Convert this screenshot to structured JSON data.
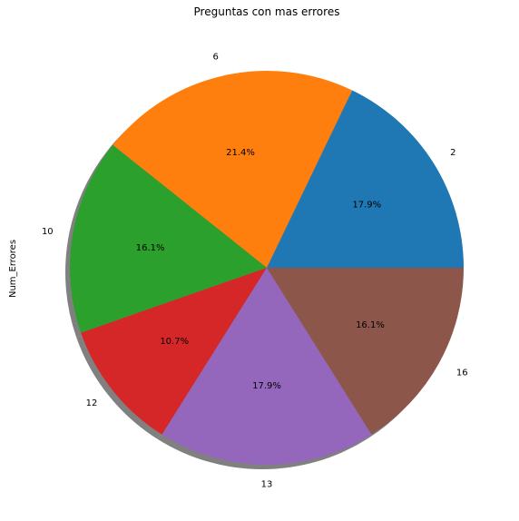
{
  "chart_data": {
    "type": "pie",
    "title": "Preguntas con mas errores",
    "ylabel": "Num_Errores",
    "categories": [
      "2",
      "6",
      "10",
      "12",
      "13",
      "16"
    ],
    "values": [
      10,
      12,
      9,
      6,
      10,
      9
    ],
    "percent_labels": [
      "17.9%",
      "21.4%",
      "16.1%",
      "10.7%",
      "17.9%",
      "16.1%"
    ],
    "colors": [
      "#1f77b4",
      "#ff7f0e",
      "#2ca02c",
      "#d62728",
      "#9467bd",
      "#8c564b"
    ],
    "start_angle_deg": 0,
    "direction": "counterclockwise",
    "shadow": true,
    "legend": "none"
  }
}
